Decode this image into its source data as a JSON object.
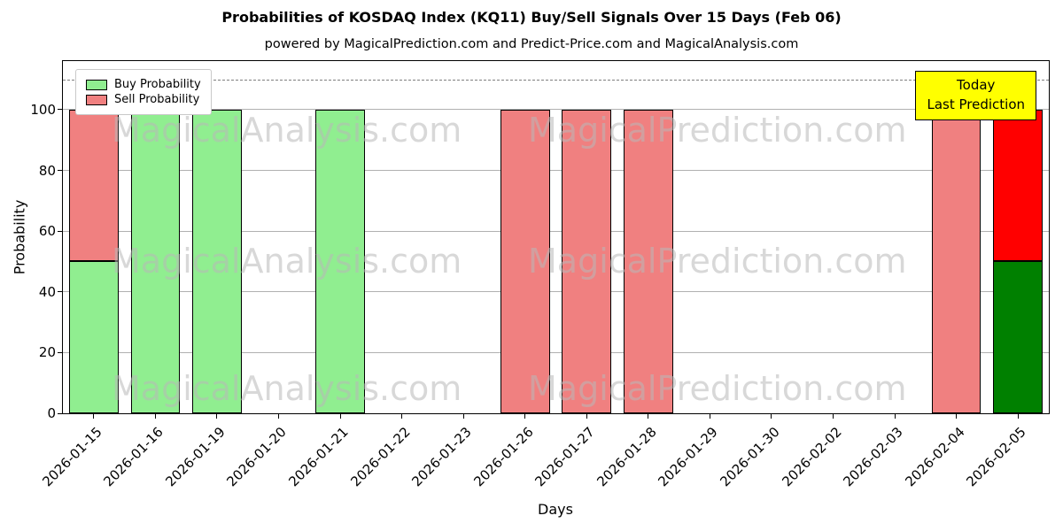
{
  "chart_data": {
    "type": "bar",
    "title": "Probabilities of KOSDAQ Index (KQ11) Buy/Sell Signals Over 15 Days (Feb 06)",
    "subtitle": "powered by MagicalPrediction.com and Predict-Price.com and MagicalAnalysis.com",
    "xlabel": "Days",
    "ylabel": "Probability",
    "ylim": [
      0,
      116
    ],
    "yticks": [
      0,
      20,
      40,
      60,
      80,
      100
    ],
    "dashed_line_y": 110,
    "grid": true,
    "legend_position": "upper-left",
    "categories": [
      "2026-01-15",
      "2026-01-16",
      "2026-01-19",
      "2026-01-20",
      "2026-01-21",
      "2026-01-22",
      "2026-01-23",
      "2026-01-26",
      "2026-01-27",
      "2026-01-28",
      "2026-01-29",
      "2026-01-30",
      "2026-02-02",
      "2026-02-03",
      "2026-02-04",
      "2026-02-05"
    ],
    "series": [
      {
        "name": "Buy Probability",
        "color": "#90ee90",
        "values": [
          50,
          100,
          100,
          0,
          100,
          0,
          0,
          0,
          0,
          0,
          0,
          0,
          0,
          0,
          0,
          50
        ]
      },
      {
        "name": "Sell Probability",
        "color": "#f08080",
        "values": [
          50,
          0,
          0,
          0,
          0,
          0,
          0,
          100,
          100,
          100,
          0,
          0,
          0,
          0,
          100,
          50
        ]
      }
    ],
    "highlight": {
      "index": 15,
      "buy_color": "#008000",
      "sell_color": "#ff0000"
    }
  },
  "annotation": {
    "line1": "Today",
    "line2": "Last Prediction",
    "bg_color": "#ffff00"
  },
  "watermarks": {
    "left": "MagicalAnalysis.com",
    "right": "MagicalPrediction.com"
  }
}
